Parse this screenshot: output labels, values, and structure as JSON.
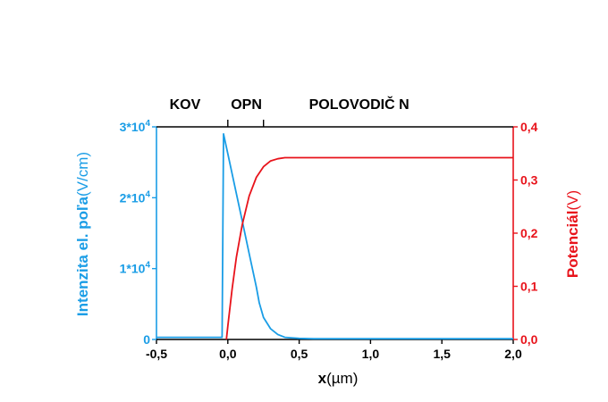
{
  "chart_data": {
    "type": "line",
    "xlabel": {
      "bold": "x",
      "rest": "(µm)"
    },
    "ylabel_left": {
      "bold": "Intenzita el. poľa",
      "rest": "(V/cm)"
    },
    "ylabel_right": {
      "bold": "Potenciál",
      "rest": "(V)"
    },
    "xlim": [
      -0.5,
      2.0
    ],
    "ylim_left": [
      0,
      30000
    ],
    "ylim_right": [
      0,
      0.4
    ],
    "x_ticks": [
      {
        "value": -0.5,
        "label": "-0,5"
      },
      {
        "value": 0.0,
        "label": "0,0"
      },
      {
        "value": 0.5,
        "label": "0,5"
      },
      {
        "value": 1.0,
        "label": "1,0"
      },
      {
        "value": 1.5,
        "label": "1,5"
      },
      {
        "value": 2.0,
        "label": "2,0"
      }
    ],
    "y_left_ticks": [
      {
        "value": 0,
        "base": "0",
        "exp": ""
      },
      {
        "value": 10000,
        "base": "1*10",
        "exp": "4"
      },
      {
        "value": 20000,
        "base": "2*10",
        "exp": "4"
      },
      {
        "value": 30000,
        "base": "3*10",
        "exp": "4"
      }
    ],
    "y_right_ticks": [
      {
        "value": 0.0,
        "label": "0,0"
      },
      {
        "value": 0.1,
        "label": "0,1"
      },
      {
        "value": 0.2,
        "label": "0,2"
      },
      {
        "value": 0.3,
        "label": "0,3"
      },
      {
        "value": 0.4,
        "label": "0,4"
      }
    ],
    "regions": [
      {
        "label": "KOV",
        "x": -0.3
      },
      {
        "label": "OPN",
        "x": 0.13
      },
      {
        "label": "POLOVODIČ N",
        "x": 0.92
      }
    ],
    "region_boundaries": [
      0.0,
      0.25
    ],
    "colors": {
      "field": "#1a9de6",
      "potential": "#e8131b",
      "axis": "#000000"
    },
    "series": [
      {
        "axis": "left",
        "x": [
          -0.5,
          -0.04,
          -0.03,
          0.0,
          0.05,
          0.1,
          0.15,
          0.2,
          0.22,
          0.25,
          0.3,
          0.35,
          0.4,
          0.5,
          0.6,
          1.0,
          1.5,
          2.0
        ],
        "y": [
          300,
          300,
          29000,
          26200,
          21500,
          16800,
          12100,
          7400,
          5200,
          3100,
          1500,
          700,
          300,
          150,
          100,
          100,
          100,
          100
        ]
      },
      {
        "axis": "right",
        "x": [
          -0.01,
          0.0,
          0.03,
          0.06,
          0.1,
          0.15,
          0.2,
          0.25,
          0.3,
          0.35,
          0.4,
          0.5,
          1.0,
          1.5,
          2.0
        ],
        "y": [
          0.0,
          0.025,
          0.095,
          0.155,
          0.215,
          0.27,
          0.305,
          0.325,
          0.336,
          0.34,
          0.342,
          0.342,
          0.342,
          0.342,
          0.342
        ]
      }
    ]
  }
}
